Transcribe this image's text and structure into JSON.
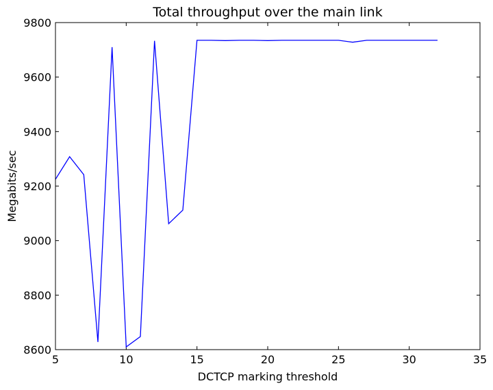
{
  "chart_data": {
    "type": "line",
    "title": "Total throughput over the main link",
    "xlabel": "DCTCP marking threshold",
    "ylabel": "Megabits/sec",
    "xlim": [
      5,
      35
    ],
    "ylim": [
      8600,
      9800
    ],
    "xticks": [
      5,
      10,
      15,
      20,
      25,
      30,
      35
    ],
    "yticks": [
      8600,
      8800,
      9000,
      9200,
      9400,
      9600,
      9800
    ],
    "grid": false,
    "series": [
      {
        "color": "#0000ff",
        "x": [
          5,
          6,
          7,
          8,
          9,
          10,
          11,
          12,
          13,
          14,
          15,
          16,
          17,
          18,
          19,
          20,
          21,
          22,
          23,
          24,
          25,
          26,
          27,
          28,
          29,
          30,
          31,
          32
        ],
        "y": [
          9225,
          9308,
          9242,
          8628,
          9710,
          8610,
          8648,
          9733,
          9062,
          9112,
          9735,
          9735,
          9734,
          9735,
          9735,
          9734,
          9735,
          9735,
          9735,
          9735,
          9735,
          9728,
          9735,
          9735,
          9735,
          9735,
          9735,
          9735
        ]
      }
    ]
  }
}
